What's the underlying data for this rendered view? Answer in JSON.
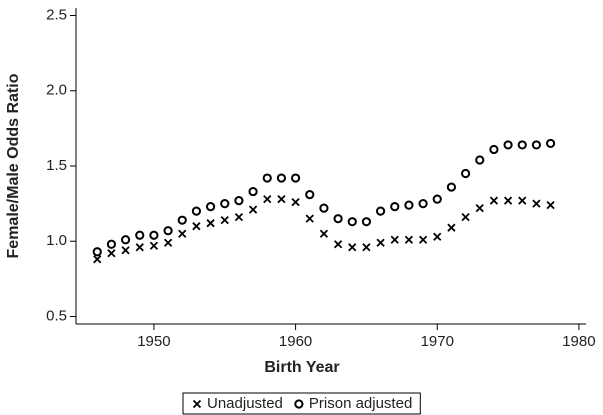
{
  "chart_data": {
    "type": "scatter",
    "xlabel": "Birth Year",
    "ylabel": "Female/Male Odds Ratio",
    "x": [
      1946,
      1947,
      1948,
      1949,
      1950,
      1951,
      1952,
      1953,
      1954,
      1955,
      1956,
      1957,
      1958,
      1959,
      1960,
      1961,
      1962,
      1963,
      1964,
      1965,
      1966,
      1967,
      1968,
      1969,
      1970,
      1971,
      1972,
      1973,
      1974,
      1975,
      1976,
      1977,
      1978
    ],
    "series": [
      {
        "name": "Unadjusted",
        "marker": "x",
        "color": "#000000",
        "values": [
          0.88,
          0.92,
          0.94,
          0.96,
          0.97,
          0.99,
          1.05,
          1.1,
          1.12,
          1.14,
          1.16,
          1.21,
          1.28,
          1.28,
          1.26,
          1.15,
          1.05,
          0.98,
          0.96,
          0.96,
          0.99,
          1.01,
          1.01,
          1.01,
          1.03,
          1.09,
          1.16,
          1.22,
          1.27,
          1.27,
          1.27,
          1.25,
          1.24
        ]
      },
      {
        "name": "Prison adjusted",
        "marker": "o",
        "color": "#000000",
        "values": [
          0.93,
          0.98,
          1.01,
          1.04,
          1.04,
          1.07,
          1.14,
          1.2,
          1.23,
          1.25,
          1.27,
          1.33,
          1.42,
          1.42,
          1.42,
          1.31,
          1.22,
          1.15,
          1.13,
          1.13,
          1.2,
          1.23,
          1.24,
          1.25,
          1.28,
          1.36,
          1.45,
          1.54,
          1.61,
          1.64,
          1.64,
          1.64,
          1.65
        ]
      }
    ],
    "xlim": [
      1944.5,
      1980.5
    ],
    "xticks": [
      1950,
      1960,
      1970,
      1980
    ],
    "ylim": [
      0.45,
      2.55
    ],
    "yticks": [
      0.5,
      {
        "value": 1.0,
        "label": "1.0"
      },
      1.5,
      {
        "value": 2.0,
        "label": "2.0"
      },
      2.5
    ],
    "legend": "bottom"
  }
}
